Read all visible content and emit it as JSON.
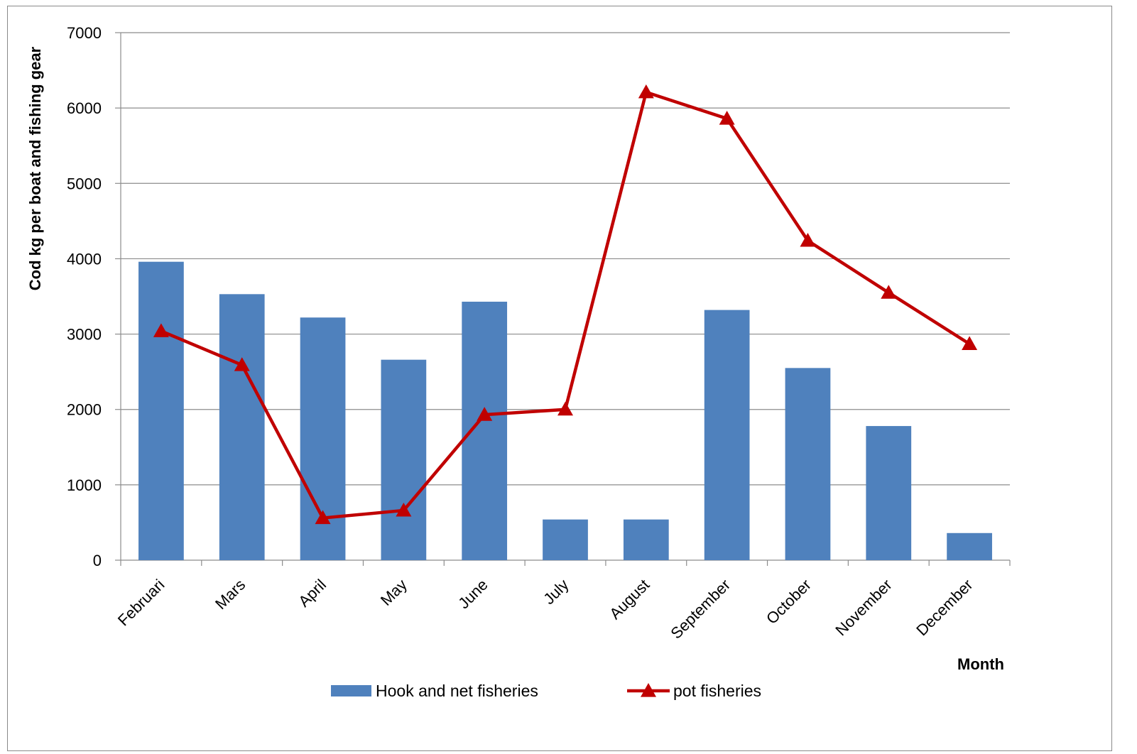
{
  "chart_data": {
    "type": "bar",
    "title": "",
    "xlabel": "Month",
    "ylabel": "Cod kg per boat and fishing gear",
    "ylim": [
      0,
      7000
    ],
    "yticks": [
      "0",
      "1000",
      "2000",
      "3000",
      "4000",
      "5000",
      "6000",
      "7000"
    ],
    "grid": true,
    "legend_position": "bottom",
    "categories": [
      "Februari",
      "Mars",
      "April",
      "May",
      "June",
      "July",
      "August",
      "September",
      "October",
      "November",
      "December"
    ],
    "series": [
      {
        "name": "Hook and net fisheries",
        "type": "bar",
        "color": "#4F81BD",
        "values": [
          3960,
          3530,
          3220,
          2660,
          3430,
          540,
          540,
          3320,
          2550,
          1780,
          360
        ]
      },
      {
        "name": "pot fisheries",
        "type": "line",
        "marker": "triangle",
        "color": "#C00000",
        "values": [
          3040,
          2590,
          560,
          660,
          1930,
          2000,
          6210,
          5860,
          4240,
          3550,
          2870
        ]
      }
    ]
  }
}
